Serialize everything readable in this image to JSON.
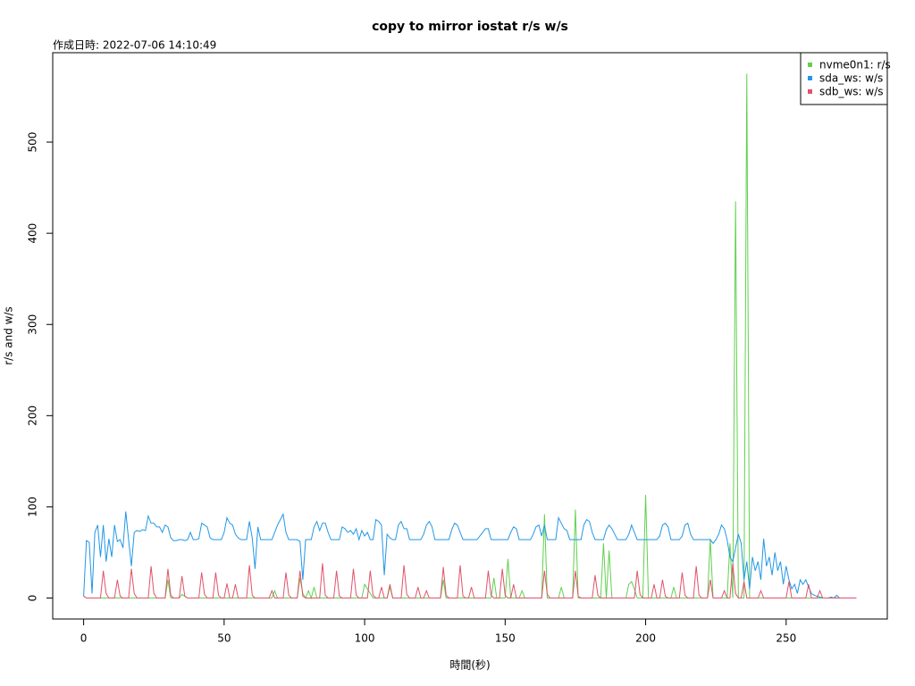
{
  "chart_data": {
    "type": "line",
    "title": "copy to mirror iostat r/s w/s",
    "subtitle": "作成日時: 2022-07-06 14:10:49",
    "x_label": "時間(秒)",
    "y_label": "r/s and w/s",
    "xlim": [
      -11,
      286
    ],
    "ylim": [
      -23,
      598
    ],
    "xticks": [
      0,
      50,
      100,
      150,
      200,
      250
    ],
    "yticks": [
      0,
      100,
      200,
      300,
      400,
      500
    ],
    "legend": "top-right",
    "x": [
      0,
      1,
      2,
      3,
      4,
      5,
      6,
      7,
      8,
      9,
      10,
      11,
      12,
      13,
      14,
      15,
      16,
      17,
      18,
      19,
      20,
      21,
      22,
      23,
      24,
      25,
      26,
      27,
      28,
      29,
      30,
      31,
      32,
      33,
      34,
      35,
      36,
      37,
      38,
      39,
      40,
      41,
      42,
      43,
      44,
      45,
      46,
      47,
      48,
      49,
      50,
      51,
      52,
      53,
      54,
      55,
      56,
      57,
      58,
      59,
      60,
      61,
      62,
      63,
      64,
      65,
      66,
      67,
      68,
      69,
      70,
      71,
      72,
      73,
      74,
      75,
      76,
      77,
      78,
      79,
      80,
      81,
      82,
      83,
      84,
      85,
      86,
      87,
      88,
      89,
      90,
      91,
      92,
      93,
      94,
      95,
      96,
      97,
      98,
      99,
      100,
      101,
      102,
      103,
      104,
      105,
      106,
      107,
      108,
      109,
      110,
      111,
      112,
      113,
      114,
      115,
      116,
      117,
      118,
      119,
      120,
      121,
      122,
      123,
      124,
      125,
      126,
      127,
      128,
      129,
      130,
      131,
      132,
      133,
      134,
      135,
      136,
      137,
      138,
      139,
      140,
      141,
      142,
      143,
      144,
      145,
      146,
      147,
      148,
      149,
      150,
      151,
      152,
      153,
      154,
      155,
      156,
      157,
      158,
      159,
      160,
      161,
      162,
      163,
      164,
      165,
      166,
      167,
      168,
      169,
      170,
      171,
      172,
      173,
      174,
      175,
      176,
      177,
      178,
      179,
      180,
      181,
      182,
      183,
      184,
      185,
      186,
      187,
      188,
      189,
      190,
      191,
      192,
      193,
      194,
      195,
      196,
      197,
      198,
      199,
      200,
      201,
      202,
      203,
      204,
      205,
      206,
      207,
      208,
      209,
      210,
      211,
      212,
      213,
      214,
      215,
      216,
      217,
      218,
      219,
      220,
      221,
      222,
      223,
      224,
      225,
      226,
      227,
      228,
      229,
      230,
      231,
      232,
      233,
      234,
      235,
      236,
      237,
      238,
      239,
      240,
      241,
      242,
      243,
      244,
      245,
      246,
      247,
      248,
      249,
      250,
      251,
      252,
      253,
      254,
      255,
      256,
      257,
      258,
      259,
      260,
      261,
      262,
      263,
      264,
      265,
      266,
      267,
      268,
      269,
      270,
      271,
      272,
      273,
      274,
      275
    ],
    "series": [
      {
        "name": "nvme0n1: r/s",
        "color": "#61D04F",
        "values": [
          2,
          0,
          0,
          0,
          0,
          0,
          0,
          0,
          0,
          0,
          0,
          0,
          0,
          0,
          0,
          0,
          0,
          0,
          0,
          0,
          0,
          0,
          0,
          0,
          0,
          0,
          0,
          0,
          0,
          0,
          20,
          0,
          0,
          0,
          0,
          4,
          2,
          0,
          0,
          0,
          0,
          0,
          0,
          0,
          0,
          0,
          0,
          0,
          0,
          0,
          0,
          0,
          0,
          0,
          0,
          0,
          0,
          0,
          0,
          0,
          0,
          0,
          0,
          0,
          0,
          0,
          0,
          0,
          8,
          0,
          0,
          0,
          0,
          0,
          0,
          0,
          0,
          22,
          5,
          0,
          8,
          0,
          12,
          0,
          0,
          0,
          0,
          0,
          0,
          0,
          0,
          0,
          0,
          0,
          0,
          0,
          0,
          0,
          0,
          0,
          15,
          10,
          5,
          0,
          0,
          0,
          0,
          0,
          0,
          12,
          0,
          0,
          0,
          0,
          0,
          0,
          0,
          0,
          0,
          0,
          0,
          0,
          0,
          0,
          0,
          0,
          0,
          0,
          20,
          0,
          0,
          0,
          0,
          0,
          0,
          0,
          0,
          0,
          0,
          0,
          0,
          0,
          0,
          0,
          0,
          0,
          22,
          0,
          0,
          0,
          0,
          43,
          0,
          0,
          0,
          0,
          8,
          0,
          0,
          0,
          0,
          0,
          0,
          0,
          92,
          0,
          0,
          0,
          0,
          0,
          12,
          0,
          0,
          0,
          0,
          97,
          0,
          0,
          0,
          0,
          0,
          0,
          0,
          0,
          0,
          60,
          0,
          52,
          0,
          0,
          0,
          0,
          0,
          0,
          15,
          18,
          10,
          0,
          0,
          0,
          113,
          0,
          0,
          0,
          0,
          0,
          0,
          0,
          0,
          0,
          12,
          0,
          0,
          0,
          0,
          0,
          0,
          0,
          0,
          0,
          0,
          0,
          0,
          65,
          0,
          0,
          0,
          0,
          0,
          0,
          60,
          0,
          435,
          0,
          0,
          0,
          575,
          0,
          0,
          0,
          0,
          0,
          0,
          0,
          0,
          0,
          0,
          0,
          0,
          0,
          0,
          0,
          0,
          0,
          0,
          0,
          0,
          0,
          0,
          0,
          0,
          0,
          0,
          0,
          0,
          0,
          0,
          0,
          0,
          0,
          0,
          0,
          0,
          0,
          0,
          0
        ]
      },
      {
        "name": "sda_ws: w/s",
        "color": "#2297E6",
        "values": [
          2,
          63,
          61,
          5,
          72,
          80,
          45,
          80,
          40,
          65,
          45,
          80,
          62,
          64,
          55,
          95,
          64,
          35,
          72,
          74,
          73,
          75,
          74,
          90,
          82,
          82,
          78,
          78,
          72,
          80,
          78,
          66,
          63,
          63,
          64,
          64,
          63,
          64,
          72,
          64,
          64,
          65,
          82,
          80,
          78,
          66,
          64,
          64,
          64,
          64,
          72,
          88,
          82,
          80,
          70,
          66,
          64,
          64,
          64,
          84,
          66,
          32,
          78,
          64,
          64,
          64,
          64,
          64,
          72,
          80,
          86,
          92,
          72,
          64,
          64,
          64,
          64,
          62,
          20,
          64,
          64,
          64,
          78,
          84,
          74,
          82,
          82,
          72,
          64,
          64,
          64,
          64,
          78,
          76,
          72,
          74,
          70,
          76,
          64,
          74,
          68,
          72,
          64,
          64,
          86,
          84,
          80,
          25,
          70,
          66,
          64,
          64,
          80,
          84,
          76,
          76,
          64,
          64,
          64,
          64,
          64,
          70,
          80,
          84,
          78,
          64,
          64,
          64,
          64,
          64,
          64,
          75,
          82,
          80,
          72,
          64,
          64,
          64,
          64,
          64,
          64,
          68,
          72,
          76,
          76,
          64,
          64,
          64,
          64,
          64,
          64,
          64,
          72,
          78,
          76,
          64,
          64,
          64,
          64,
          64,
          70,
          78,
          80,
          68,
          80,
          64,
          64,
          64,
          64,
          88,
          82,
          76,
          74,
          64,
          64,
          64,
          64,
          64,
          80,
          86,
          84,
          72,
          64,
          64,
          64,
          64,
          75,
          80,
          76,
          70,
          64,
          64,
          64,
          64,
          70,
          80,
          72,
          64,
          64,
          64,
          64,
          64,
          64,
          64,
          64,
          68,
          80,
          82,
          78,
          64,
          64,
          64,
          64,
          68,
          80,
          82,
          70,
          64,
          64,
          64,
          64,
          64,
          64,
          64,
          60,
          64,
          70,
          80,
          76,
          64,
          45,
          40,
          55,
          70,
          60,
          20,
          40,
          10,
          45,
          30,
          40,
          20,
          65,
          35,
          45,
          25,
          50,
          30,
          40,
          15,
          35,
          20,
          10,
          15,
          5,
          20,
          15,
          20,
          12,
          5,
          3,
          2,
          1,
          0,
          0,
          0,
          1,
          0,
          3,
          0,
          0,
          0,
          0,
          0,
          0,
          0
        ]
      },
      {
        "name": "sdb_ws: w/s",
        "color": "#DF536B",
        "values": [
          2,
          0,
          0,
          0,
          0,
          0,
          0,
          30,
          5,
          0,
          0,
          0,
          20,
          2,
          0,
          0,
          0,
          32,
          5,
          0,
          0,
          0,
          0,
          0,
          35,
          5,
          0,
          0,
          0,
          0,
          32,
          3,
          0,
          0,
          0,
          24,
          2,
          0,
          0,
          0,
          0,
          0,
          28,
          4,
          0,
          0,
          0,
          28,
          3,
          0,
          0,
          16,
          0,
          0,
          15,
          0,
          0,
          0,
          0,
          36,
          3,
          0,
          0,
          0,
          0,
          0,
          0,
          8,
          0,
          0,
          0,
          0,
          28,
          3,
          0,
          0,
          0,
          30,
          2,
          0,
          0,
          0,
          0,
          0,
          0,
          38,
          3,
          0,
          0,
          0,
          30,
          2,
          0,
          0,
          0,
          0,
          32,
          3,
          0,
          0,
          0,
          0,
          30,
          3,
          0,
          0,
          12,
          0,
          0,
          15,
          0,
          0,
          0,
          0,
          36,
          4,
          0,
          0,
          0,
          12,
          0,
          0,
          8,
          0,
          0,
          0,
          0,
          0,
          34,
          3,
          0,
          0,
          0,
          0,
          36,
          2,
          0,
          0,
          12,
          0,
          0,
          0,
          0,
          0,
          30,
          3,
          0,
          0,
          0,
          32,
          3,
          0,
          0,
          15,
          0,
          0,
          0,
          0,
          0,
          0,
          0,
          0,
          0,
          0,
          30,
          4,
          0,
          0,
          0,
          0,
          0,
          0,
          0,
          0,
          0,
          30,
          2,
          0,
          0,
          0,
          0,
          0,
          25,
          3,
          0,
          0,
          0,
          0,
          0,
          0,
          0,
          0,
          0,
          0,
          0,
          0,
          0,
          30,
          4,
          0,
          0,
          0,
          0,
          15,
          0,
          0,
          20,
          2,
          0,
          0,
          0,
          0,
          0,
          28,
          3,
          0,
          0,
          0,
          35,
          3,
          0,
          0,
          0,
          20,
          0,
          0,
          0,
          0,
          8,
          0,
          0,
          38,
          5,
          0,
          0,
          18,
          0,
          0,
          0,
          0,
          0,
          8,
          0,
          0,
          0,
          0,
          0,
          0,
          0,
          0,
          0,
          18,
          0,
          0,
          0,
          0,
          0,
          0,
          15,
          0,
          0,
          0,
          8,
          0,
          0,
          0,
          0,
          0,
          0,
          0,
          0,
          0,
          0,
          0,
          0,
          0
        ]
      }
    ]
  }
}
